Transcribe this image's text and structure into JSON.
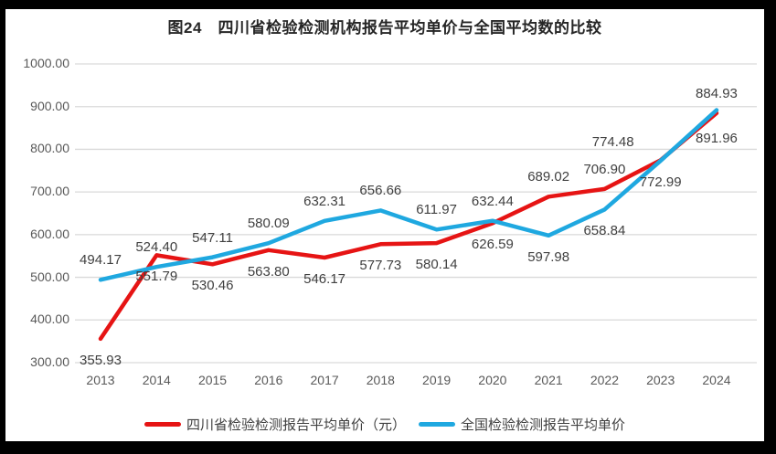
{
  "title": "图24　四川省检验检测机构报告平均单价与全国平均数的比较",
  "colors": {
    "sichuan": "#e61414",
    "national": "#1fa8e0",
    "gridline": "#d9d9d9",
    "axis_text": "#595959",
    "label_text": "#404040",
    "frame": "#000000",
    "background": "#ffffff"
  },
  "chart_data": {
    "type": "line",
    "title": "图24　四川省检验检测机构报告平均单价与全国平均数的比较",
    "x": [
      "2013",
      "2014",
      "2015",
      "2016",
      "2017",
      "2018",
      "2019",
      "2020",
      "2021",
      "2022",
      "2023",
      "2024"
    ],
    "series": [
      {
        "name": "四川省检验检测报告平均单价（元）",
        "color_key": "sichuan",
        "values": [
          355.93,
          551.79,
          530.46,
          563.8,
          546.17,
          577.73,
          580.14,
          626.59,
          689.02,
          706.9,
          774.48,
          884.93
        ],
        "label_positions": [
          "below",
          "below",
          "below",
          "below",
          "below",
          "below",
          "below",
          "below",
          "above",
          "above",
          "above",
          "above"
        ]
      },
      {
        "name": "全国检验检测报告平均单价",
        "color_key": "national",
        "values": [
          494.17,
          524.4,
          547.11,
          580.09,
          632.31,
          656.66,
          611.97,
          632.44,
          597.98,
          658.84,
          772.99,
          891.96
        ],
        "label_positions": [
          "above",
          "above",
          "above",
          "above",
          "above",
          "above",
          "above",
          "above",
          "below",
          "below",
          "below",
          "below"
        ]
      }
    ],
    "ylim": [
      300,
      1000
    ],
    "y_ticks": [
      "1000.00",
      "900.00",
      "800.00",
      "700.00",
      "600.00",
      "500.00",
      "400.00",
      "300.00"
    ],
    "grid": true,
    "legend_position": "bottom",
    "label_offset_exceptions": {
      "s0-10": {
        "dx": -52,
        "dy": 2
      },
      "s1-11": {
        "dy": 8
      }
    }
  },
  "legend": {
    "items": [
      {
        "label": "四川省检验检测报告平均单价（元）",
        "color_key": "sichuan"
      },
      {
        "label": "全国检验检测报告平均单价",
        "color_key": "national"
      }
    ]
  }
}
